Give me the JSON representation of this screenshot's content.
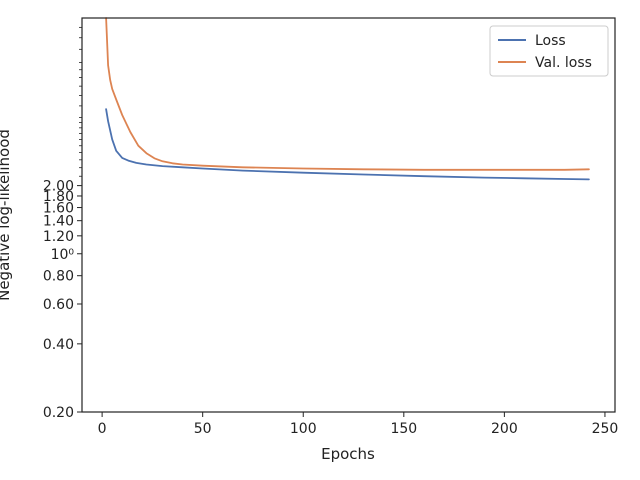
{
  "chart_data": {
    "type": "line",
    "title": "",
    "xlabel": "Epochs",
    "ylabel": "Negative log-likelihood",
    "xlim": [
      -10,
      255
    ],
    "ylim": [
      0.2,
      11
    ],
    "yscale": "log",
    "grid": false,
    "legend_position": "top-right",
    "x_ticks": [
      0,
      50,
      100,
      150,
      200,
      250
    ],
    "x_tick_labels": [
      "0",
      "50",
      "100",
      "150",
      "200",
      "250"
    ],
    "y_ticks": [
      0.2,
      0.4,
      0.6,
      0.8,
      1.0,
      1.2,
      1.4,
      1.6,
      1.8,
      2.0
    ],
    "y_tick_labels": [
      "0.20",
      "0.40",
      "0.60",
      "0.80",
      "10⁰",
      "1.20",
      "1.40",
      "1.60",
      "1.80",
      "2.00"
    ],
    "series": [
      {
        "name": "Loss",
        "color": "#4c72b0",
        "x": [
          2,
          3,
          5,
          7,
          10,
          13,
          17,
          22,
          30,
          40,
          50,
          70,
          100,
          130,
          160,
          190,
          210,
          230,
          242
        ],
        "y": [
          4.35,
          3.85,
          3.2,
          2.85,
          2.65,
          2.58,
          2.52,
          2.48,
          2.44,
          2.41,
          2.38,
          2.33,
          2.28,
          2.24,
          2.2,
          2.17,
          2.155,
          2.14,
          2.13
        ]
      },
      {
        "name": "Val. loss",
        "color": "#dd8452",
        "x": [
          2,
          3,
          4,
          5,
          7,
          10,
          14,
          18,
          22,
          26,
          30,
          35,
          40,
          50,
          70,
          100,
          130,
          160,
          190,
          210,
          230,
          242
        ],
        "y": [
          11.0,
          6.8,
          5.85,
          5.35,
          4.8,
          4.1,
          3.45,
          3.0,
          2.78,
          2.64,
          2.56,
          2.51,
          2.48,
          2.45,
          2.41,
          2.38,
          2.36,
          2.35,
          2.35,
          2.35,
          2.35,
          2.36
        ]
      }
    ]
  }
}
